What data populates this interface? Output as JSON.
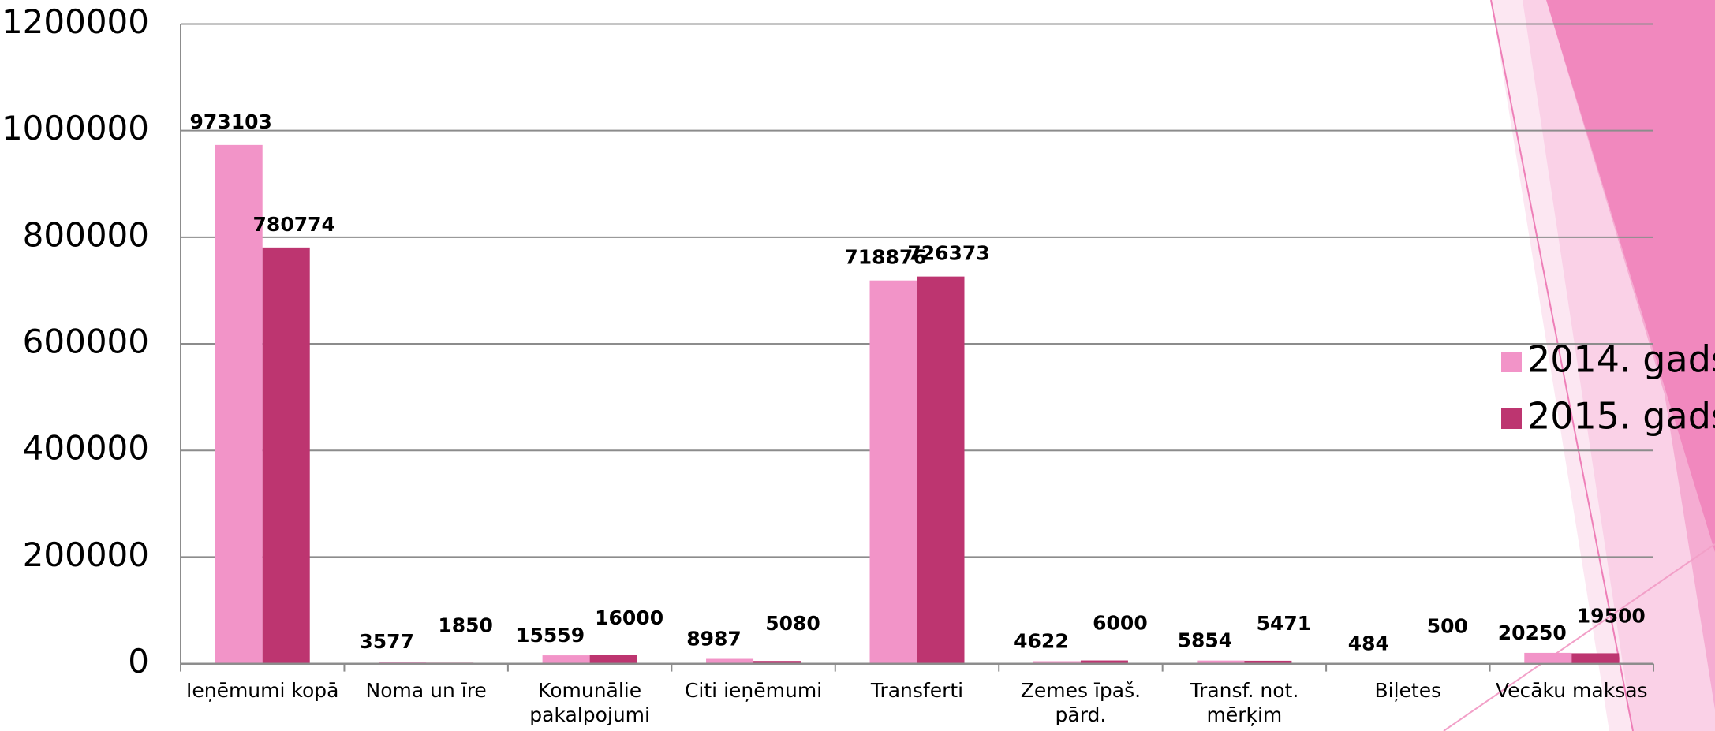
{
  "chart_data": {
    "type": "bar",
    "categories": [
      "Ieņēmumi kopā",
      "Noma un īre",
      "Komunālie pakalpojumi",
      "Citi ieņēmumi",
      "Transferti",
      "Zemes īpaš. pārd.",
      "Transf. not. mērķim",
      "Biļetes",
      "Vecāku maksas"
    ],
    "series": [
      {
        "name": "2014. gads",
        "color": "#f294c8",
        "values": [
          973103,
          3577,
          15559,
          8987,
          718876,
          4622,
          5854,
          484,
          20250
        ]
      },
      {
        "name": "2015. gads",
        "color": "#bd3570",
        "values": [
          780774,
          1850,
          16000,
          5080,
          726373,
          6000,
          5471,
          500,
          19500
        ]
      }
    ],
    "ylim": [
      0,
      1200000
    ],
    "yticks": [
      0,
      200000,
      400000,
      600000,
      800000,
      1000000,
      1200000
    ],
    "grid": true,
    "legend": "right"
  }
}
